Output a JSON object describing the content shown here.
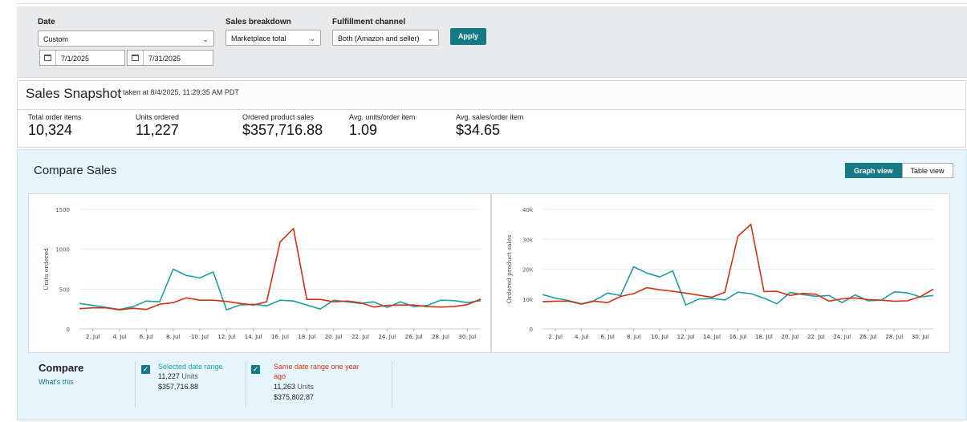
{
  "filters": {
    "date_label": "Date",
    "date_value": "Custom",
    "start_date": "7/1/2025",
    "end_date": "7/31/2025",
    "breakdown_label": "Sales breakdown",
    "breakdown_value": "Marketplace total",
    "channel_label": "Fulfillment channel",
    "channel_value": "Both (Amazon and seller)",
    "apply_label": "Apply"
  },
  "snapshot": {
    "title": "Sales Snapshot",
    "taken": "taken at 8/4/2025, 11:29:35 AM PDT",
    "metrics": [
      {
        "label": "Total order items",
        "value": "10,324"
      },
      {
        "label": "Units ordered",
        "value": "11,227"
      },
      {
        "label": "Ordered product sales",
        "value": "$357,716.88"
      },
      {
        "label": "Avg. units/order item",
        "value": "1.09"
      },
      {
        "label": "Avg. sales/order item",
        "value": "$34.65"
      }
    ]
  },
  "compare": {
    "title": "Compare Sales",
    "graph_view": "Graph view",
    "table_view": "Table view",
    "legend_title": "Compare",
    "whats_this": "What's this",
    "current": {
      "name": "Selected date range",
      "units_value": "11,227",
      "units_word": "Units",
      "sales": "$357,716.88"
    },
    "previous": {
      "name_line1": "Same date range one year",
      "name_line2": "ago",
      "units_value": "11,263",
      "units_word": "Units",
      "sales": "$375,802.87"
    }
  },
  "colors": {
    "current": "#1a9ea4",
    "previous": "#d13212",
    "accent": "#167a86"
  },
  "icons": {
    "calendar": "calendar-icon",
    "dropdown": "chevron-down-icon",
    "check": "checkbox-checked-icon"
  },
  "chart_data": [
    {
      "type": "line",
      "title": "",
      "xlabel": "",
      "ylabel": "Units ordered",
      "x": [
        1,
        2,
        3,
        4,
        5,
        6,
        7,
        8,
        9,
        10,
        11,
        12,
        13,
        14,
        15,
        16,
        17,
        18,
        19,
        20,
        21,
        22,
        23,
        24,
        25,
        26,
        27,
        28,
        29,
        30,
        31
      ],
      "x_tick_labels": [
        "2. Jul",
        "4. Jul",
        "6. Jul",
        "8. Jul",
        "10. Jul",
        "12. Jul",
        "14. Jul",
        "16. Jul",
        "18. Jul",
        "20. Jul",
        "22. Jul",
        "24. Jul",
        "26. Jul",
        "28. Jul",
        "30. Jul"
      ],
      "ylim": [
        0,
        1500
      ],
      "y_ticks": [
        "0",
        "500",
        "1000",
        "1500"
      ],
      "grid": true,
      "series": [
        {
          "color": "#1a9ea4",
          "values": [
            320,
            295,
            270,
            245,
            280,
            350,
            340,
            750,
            670,
            640,
            715,
            240,
            300,
            310,
            290,
            360,
            350,
            300,
            250,
            360,
            340,
            320,
            340,
            270,
            340,
            280,
            295,
            360,
            355,
            330,
            355
          ]
        },
        {
          "color": "#d13212",
          "values": [
            255,
            265,
            265,
            240,
            260,
            245,
            310,
            330,
            390,
            360,
            360,
            345,
            320,
            300,
            340,
            1090,
            1260,
            370,
            370,
            340,
            350,
            330,
            275,
            295,
            300,
            300,
            280,
            275,
            280,
            305,
            375
          ]
        }
      ]
    },
    {
      "type": "line",
      "title": "",
      "xlabel": "",
      "ylabel": "Ordered product sales",
      "x": [
        1,
        2,
        3,
        4,
        5,
        6,
        7,
        8,
        9,
        10,
        11,
        12,
        13,
        14,
        15,
        16,
        17,
        18,
        19,
        20,
        21,
        22,
        23,
        24,
        25,
        26,
        27,
        28,
        29,
        30,
        31
      ],
      "x_tick_labels": [
        "2. Jul",
        "4. Jul",
        "6. Jul",
        "8. Jul",
        "10. Jul",
        "12. Jul",
        "14. Jul",
        "16. Jul",
        "18. Jul",
        "20. Jul",
        "22. Jul",
        "24. Jul",
        "26. Jul",
        "28. Jul",
        "30. Jul"
      ],
      "ylim": [
        0,
        40000
      ],
      "y_ticks": [
        "0",
        "10k",
        "20k",
        "30k",
        "40k"
      ],
      "grid": true,
      "series": [
        {
          "color": "#1a9ea4",
          "values": [
            11500,
            10300,
            9500,
            8400,
            9500,
            12000,
            11200,
            20800,
            18700,
            17400,
            19400,
            8000,
            10000,
            10200,
            9700,
            12300,
            11800,
            10300,
            8400,
            12200,
            11500,
            10900,
            11200,
            8800,
            11400,
            9400,
            9600,
            12400,
            12100,
            10700,
            11200
          ]
        },
        {
          "color": "#d13212",
          "values": [
            9100,
            9300,
            9300,
            8300,
            9300,
            8800,
            10900,
            11800,
            13800,
            13100,
            12600,
            12000,
            11300,
            10600,
            12300,
            31000,
            35000,
            12500,
            12600,
            11200,
            11900,
            11600,
            9300,
            10100,
            10400,
            9800,
            9600,
            9300,
            9400,
            10800,
            13300
          ]
        }
      ]
    }
  ]
}
